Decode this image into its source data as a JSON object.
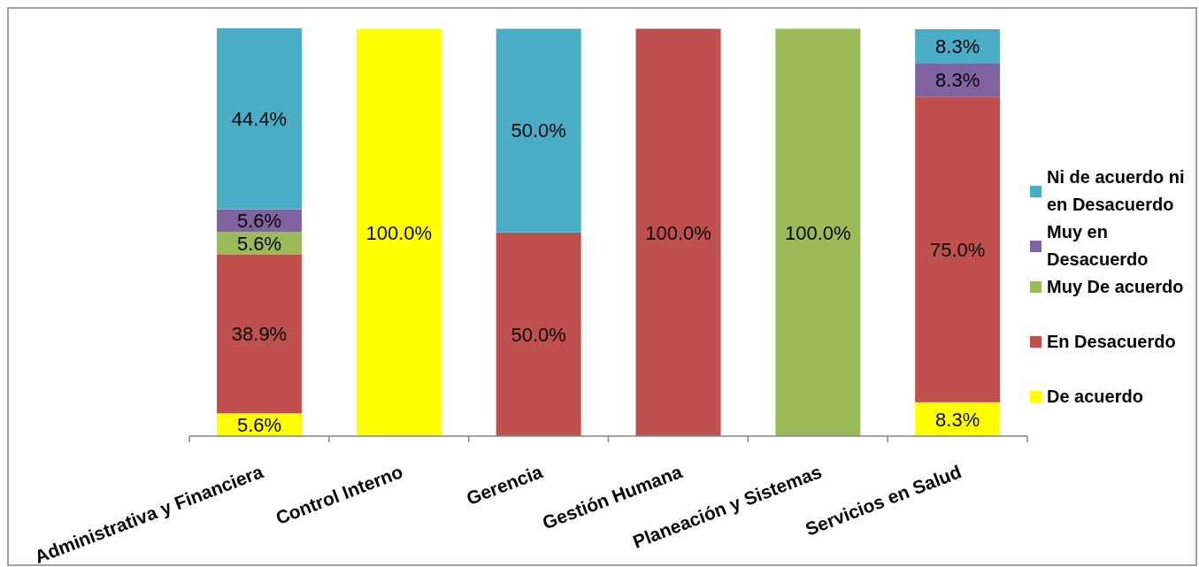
{
  "chart_data": {
    "type": "bar",
    "stacked": true,
    "legend": "right",
    "tick_labels": "x",
    "categories": [
      "Administrativa y Financiera",
      "Control Interno",
      "Gerencia",
      "Gestión Humana",
      "Planeación y Sistemas",
      "Servicios en Salud"
    ],
    "series": [
      {
        "name": "De acuerdo",
        "color": "#ffff00",
        "values": [
          5.6,
          100.0,
          null,
          null,
          null,
          8.3
        ],
        "value_labels": [
          "5.6%",
          "100.0%",
          null,
          null,
          null,
          "8.3%"
        ]
      },
      {
        "name": "En Desacuerdo",
        "color": "#c0504d",
        "values": [
          38.9,
          null,
          50.0,
          100.0,
          null,
          75.0
        ],
        "value_labels": [
          "38.9%",
          null,
          "50.0%",
          "100.0%",
          null,
          "75.0%"
        ]
      },
      {
        "name": "Muy De acuerdo",
        "color": "#9bbb59",
        "values": [
          5.6,
          null,
          null,
          null,
          100.0,
          null
        ],
        "value_labels": [
          "5.6%",
          null,
          null,
          null,
          "100.0%",
          null
        ]
      },
      {
        "name": "Muy en Desacuerdo",
        "color": "#8064a2",
        "values": [
          5.6,
          null,
          null,
          null,
          null,
          8.3
        ],
        "value_labels": [
          "5.6%",
          null,
          null,
          null,
          null,
          "8.3%"
        ]
      },
      {
        "name": "Ni de acuerdo ni en Desacuerdo",
        "color": "#4bacc6",
        "values": [
          44.4,
          null,
          50.0,
          null,
          null,
          8.3
        ],
        "value_labels": [
          "44.4%",
          null,
          "50.0%",
          null,
          null,
          "8.3%"
        ]
      }
    ]
  }
}
